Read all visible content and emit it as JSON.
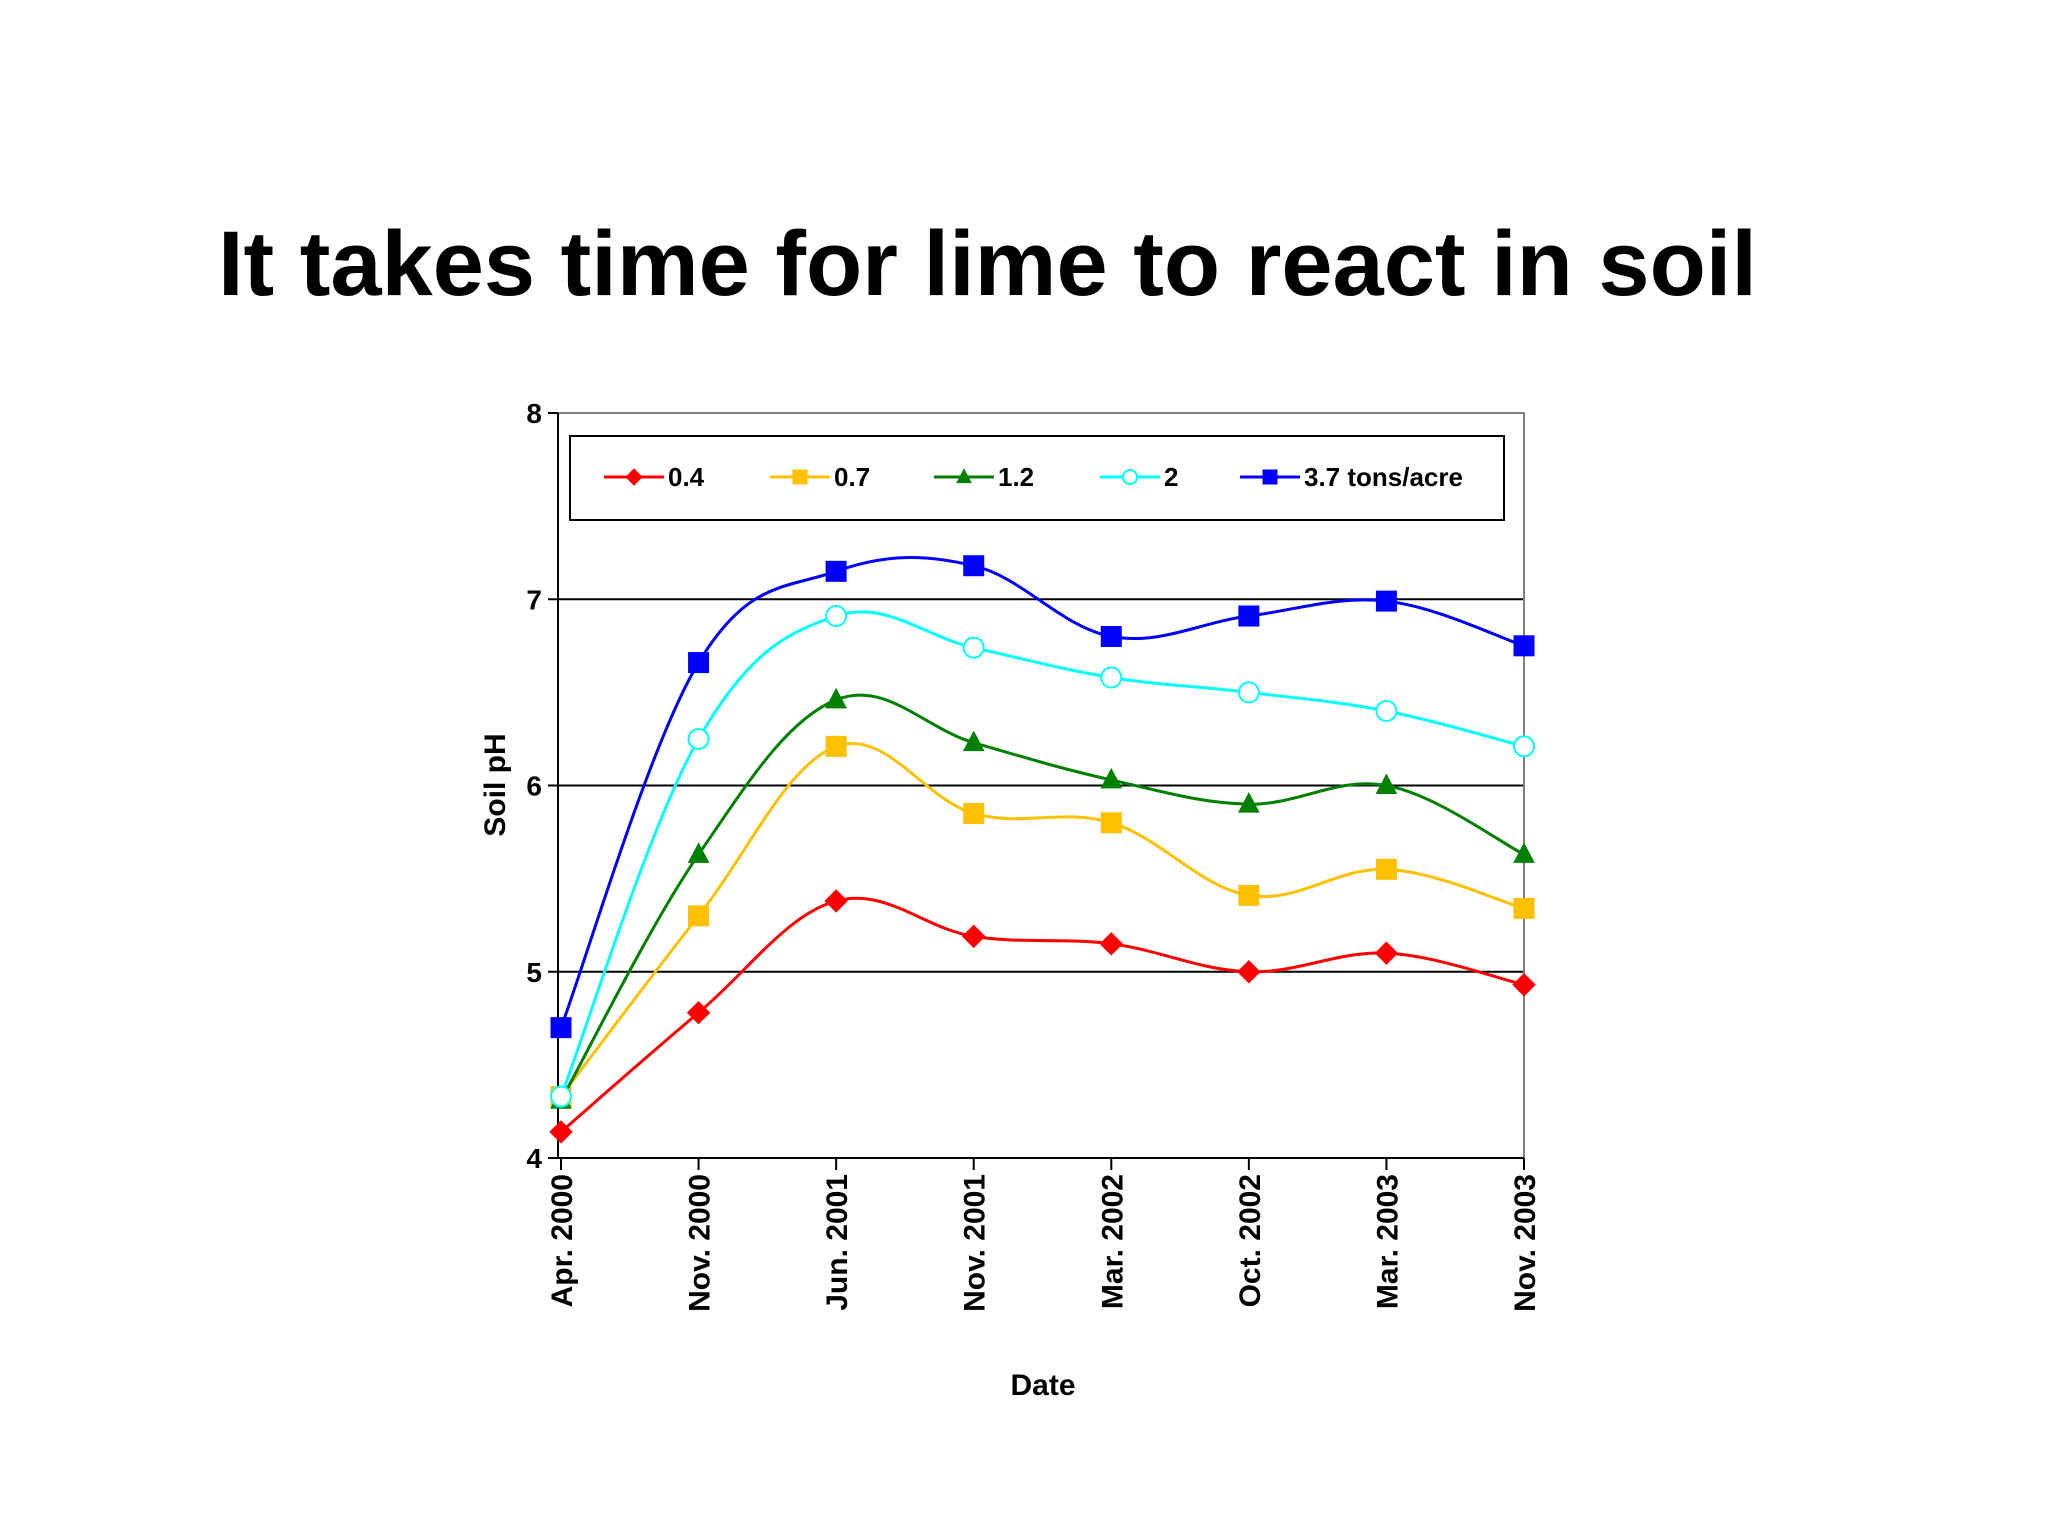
{
  "slide": {
    "title": "It takes time for lime to react in soil"
  },
  "chart_data": {
    "type": "line",
    "title": "",
    "xlabel": "Date",
    "ylabel": "Soil pH",
    "ylim": [
      4,
      8
    ],
    "yticks": [
      "4",
      "5",
      "6",
      "7",
      "8"
    ],
    "grid": "horizontal major gridlines",
    "legend_position": "top",
    "categories": [
      "Apr. 2000",
      "Nov. 2000",
      "Jun. 2001",
      "Nov. 2001",
      "Mar. 2002",
      "Oct. 2002",
      "Mar. 2003",
      "Nov. 2003"
    ],
    "series": [
      {
        "name": "0.4",
        "color": "#ff0000",
        "marker": "diamond",
        "values": [
          4.14,
          4.78,
          5.38,
          5.19,
          5.15,
          5.0,
          5.1,
          4.93
        ]
      },
      {
        "name": "0.7",
        "color": "#ffc000",
        "marker": "square",
        "values": [
          4.33,
          5.3,
          6.21,
          5.85,
          5.8,
          5.41,
          5.55,
          5.34
        ]
      },
      {
        "name": "1.2",
        "color": "#008000",
        "marker": "triangle",
        "values": [
          4.31,
          5.63,
          6.46,
          6.23,
          6.03,
          5.9,
          6.0,
          5.63
        ]
      },
      {
        "name": "2",
        "color": "#00ffff",
        "marker": "open-circle",
        "values": [
          4.33,
          6.25,
          6.91,
          6.74,
          6.58,
          6.5,
          6.4,
          6.21
        ]
      },
      {
        "name": "3.7 tons/acre",
        "color": "#0000ff",
        "marker": "square",
        "values": [
          4.7,
          6.66,
          7.15,
          7.18,
          6.8,
          6.91,
          6.99,
          6.75
        ]
      }
    ]
  }
}
